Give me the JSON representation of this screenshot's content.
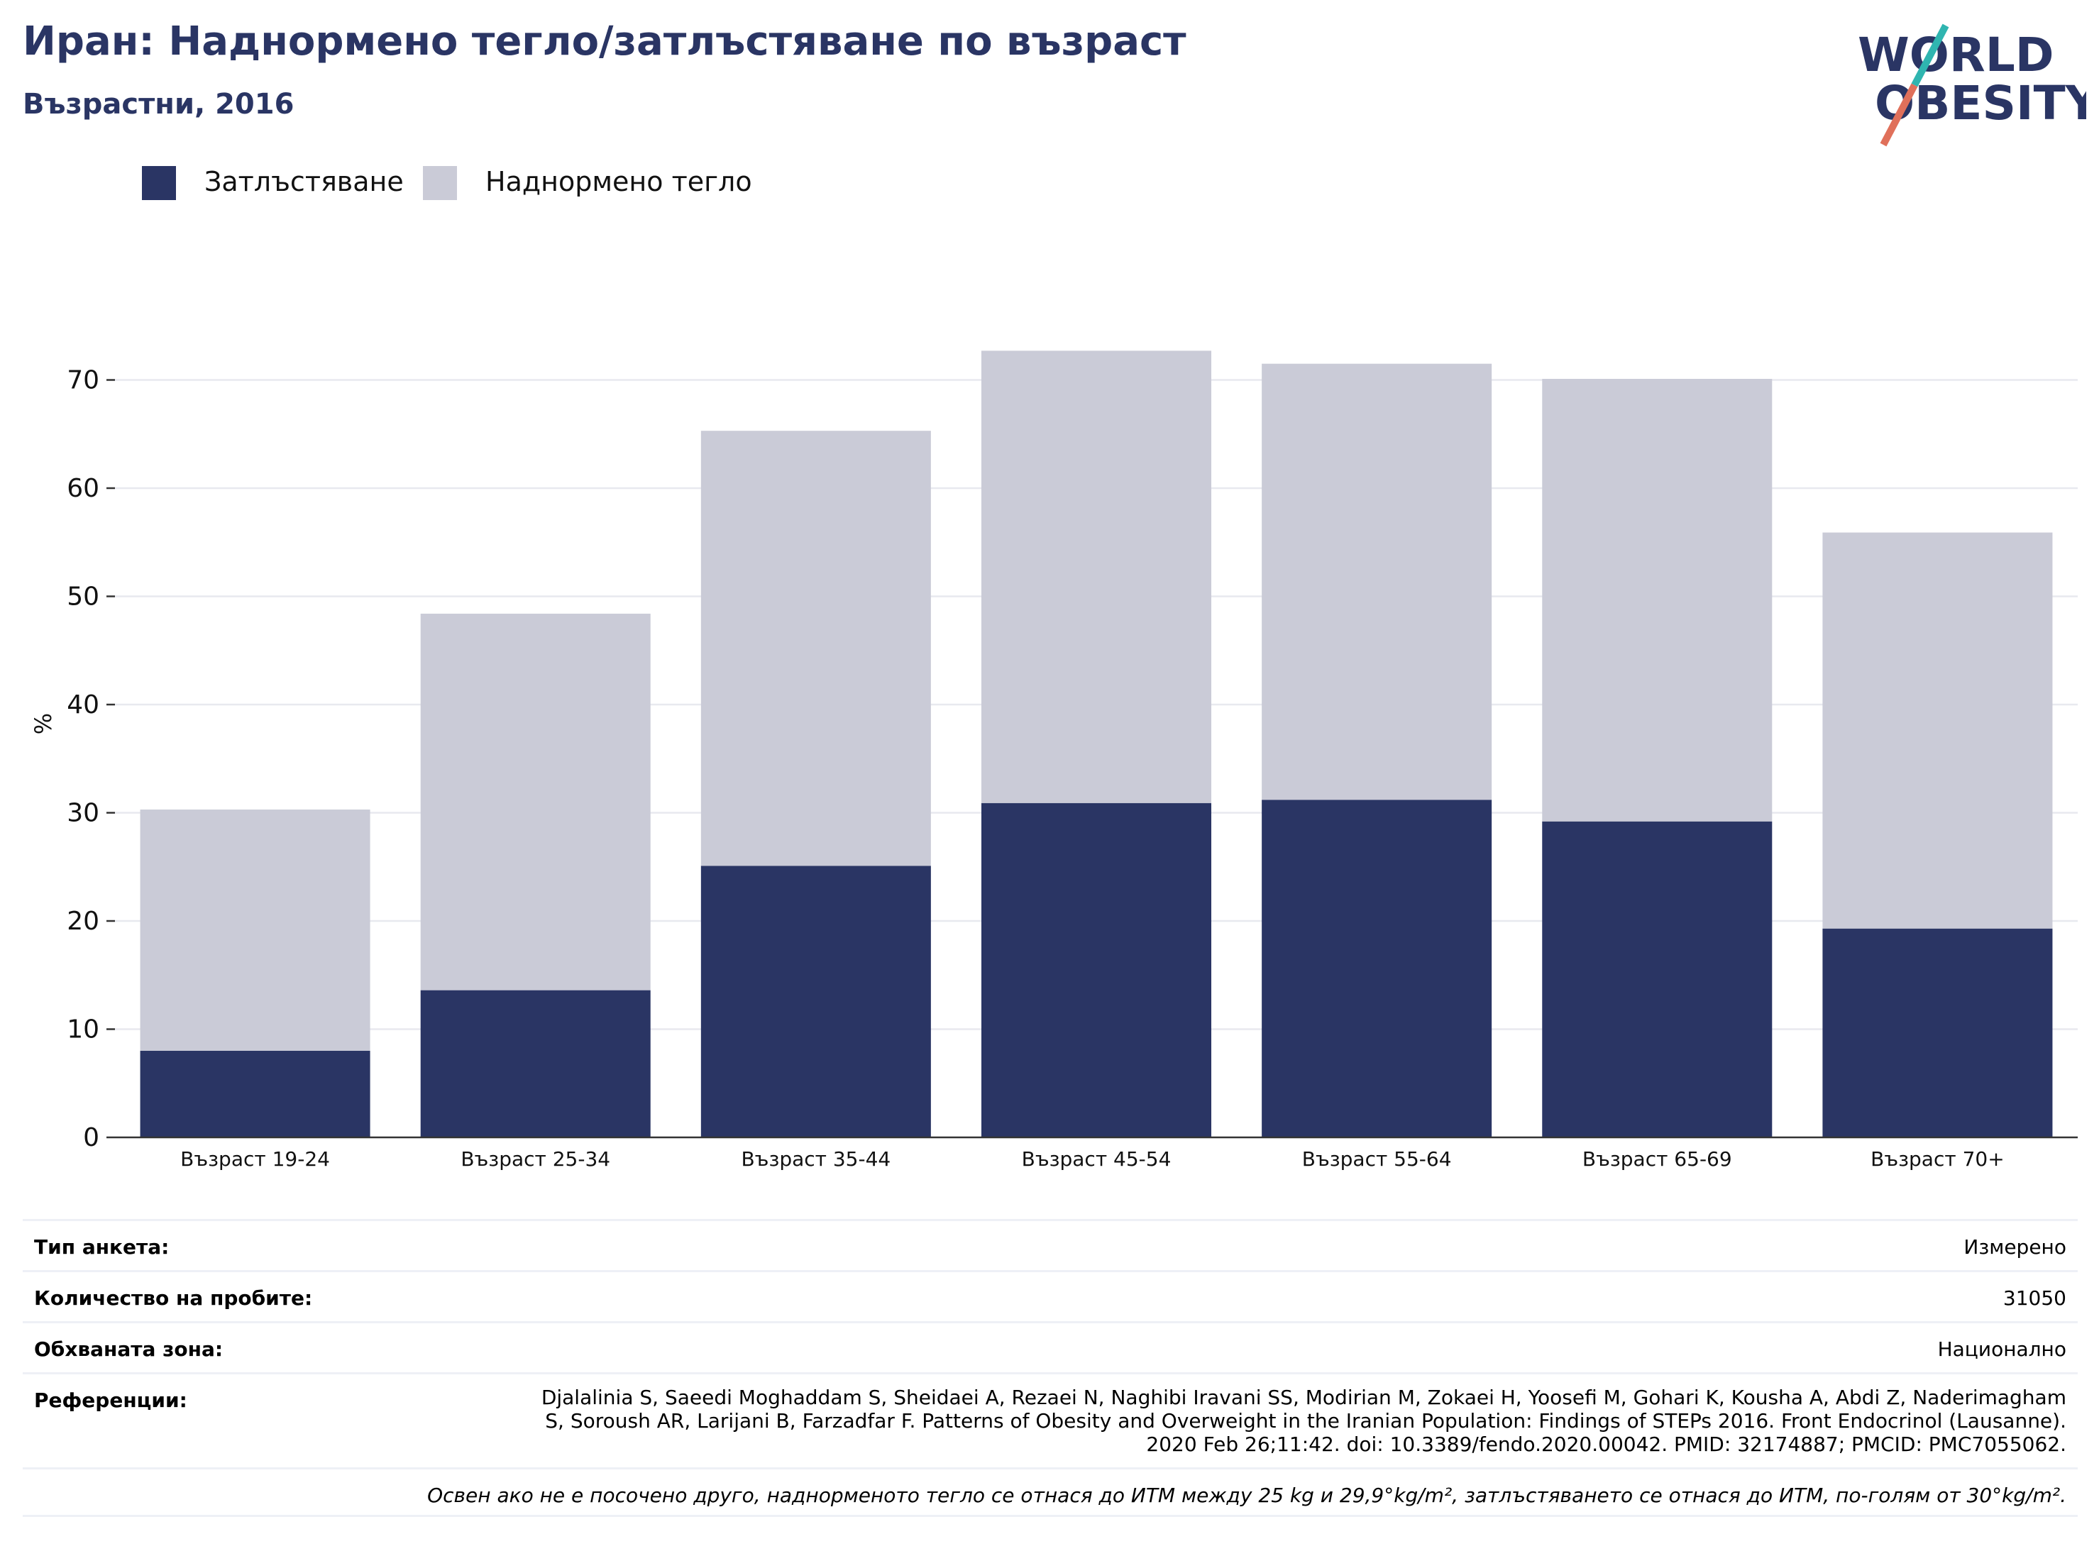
{
  "header": {
    "title": "Иран: Наднормено тегло/затлъстяване по възраст",
    "subtitle": "Възрастни, 2016",
    "logo": {
      "line1": "WORLD",
      "line2": "OBESITY",
      "colors": {
        "text": "#2a3564",
        "slash_top": "#2fb5b0",
        "slash_bottom": "#e0705a"
      }
    }
  },
  "legend": [
    {
      "label": "Затлъстяване",
      "color": "#2a3564"
    },
    {
      "label": "Наднормено тегло",
      "color": "#cacbd7"
    }
  ],
  "chart_data": {
    "type": "bar",
    "stacked": true,
    "categories": [
      "Възраст 19-24",
      "Възраст 25-34",
      "Възраст 35-44",
      "Възраст 45-54",
      "Възраст 55-64",
      "Възраст 65-69",
      "Възраст 70+"
    ],
    "series": [
      {
        "name": "Затлъстяване",
        "color": "#2a3564",
        "values": [
          8.0,
          13.6,
          25.1,
          30.9,
          31.2,
          29.2,
          19.3
        ]
      },
      {
        "name": "Наднормено тегло",
        "color": "#cacbd7",
        "values": [
          22.3,
          34.8,
          40.2,
          41.8,
          40.3,
          40.9,
          36.6
        ]
      }
    ],
    "ylabel": "%",
    "xlabel": "",
    "ylim": [
      0,
      80
    ],
    "yticks": [
      0,
      10,
      20,
      30,
      40,
      50,
      60,
      70
    ],
    "grid": true,
    "legend_position": "top-left"
  },
  "info": {
    "rows": [
      {
        "label": "Тип анкета:",
        "value": "Измерено"
      },
      {
        "label": "Количество на пробите:",
        "value": "31050"
      },
      {
        "label": "Обхваната зона:",
        "value": "Национално"
      }
    ],
    "references_label": "Референции:",
    "references_value": "Djalalinia S, Saeedi Moghaddam S, Sheidaei A, Rezaei N, Naghibi Iravani SS, Modirian M, Zokaei H, Yoosefi M, Gohari K, Kousha A, Abdi Z, Naderimagham S, Soroush AR, Larijani B, Farzadfar F. Patterns of Obesity and Overweight in the Iranian Population: Findings of STEPs 2016. Front Endocrinol (Lausanne). 2020 Feb 26;11:42. doi: 10.3389/fendo.2020.00042. PMID: 32174887; PMCID: PMC7055062.",
    "note": "Освен ако не е посочено друго, наднорменото тегло се отнася до ИТМ между 25 kg и 29,9°kg/m², затлъстяването се отнася до ИТМ, по-голям от 30°kg/m²."
  }
}
